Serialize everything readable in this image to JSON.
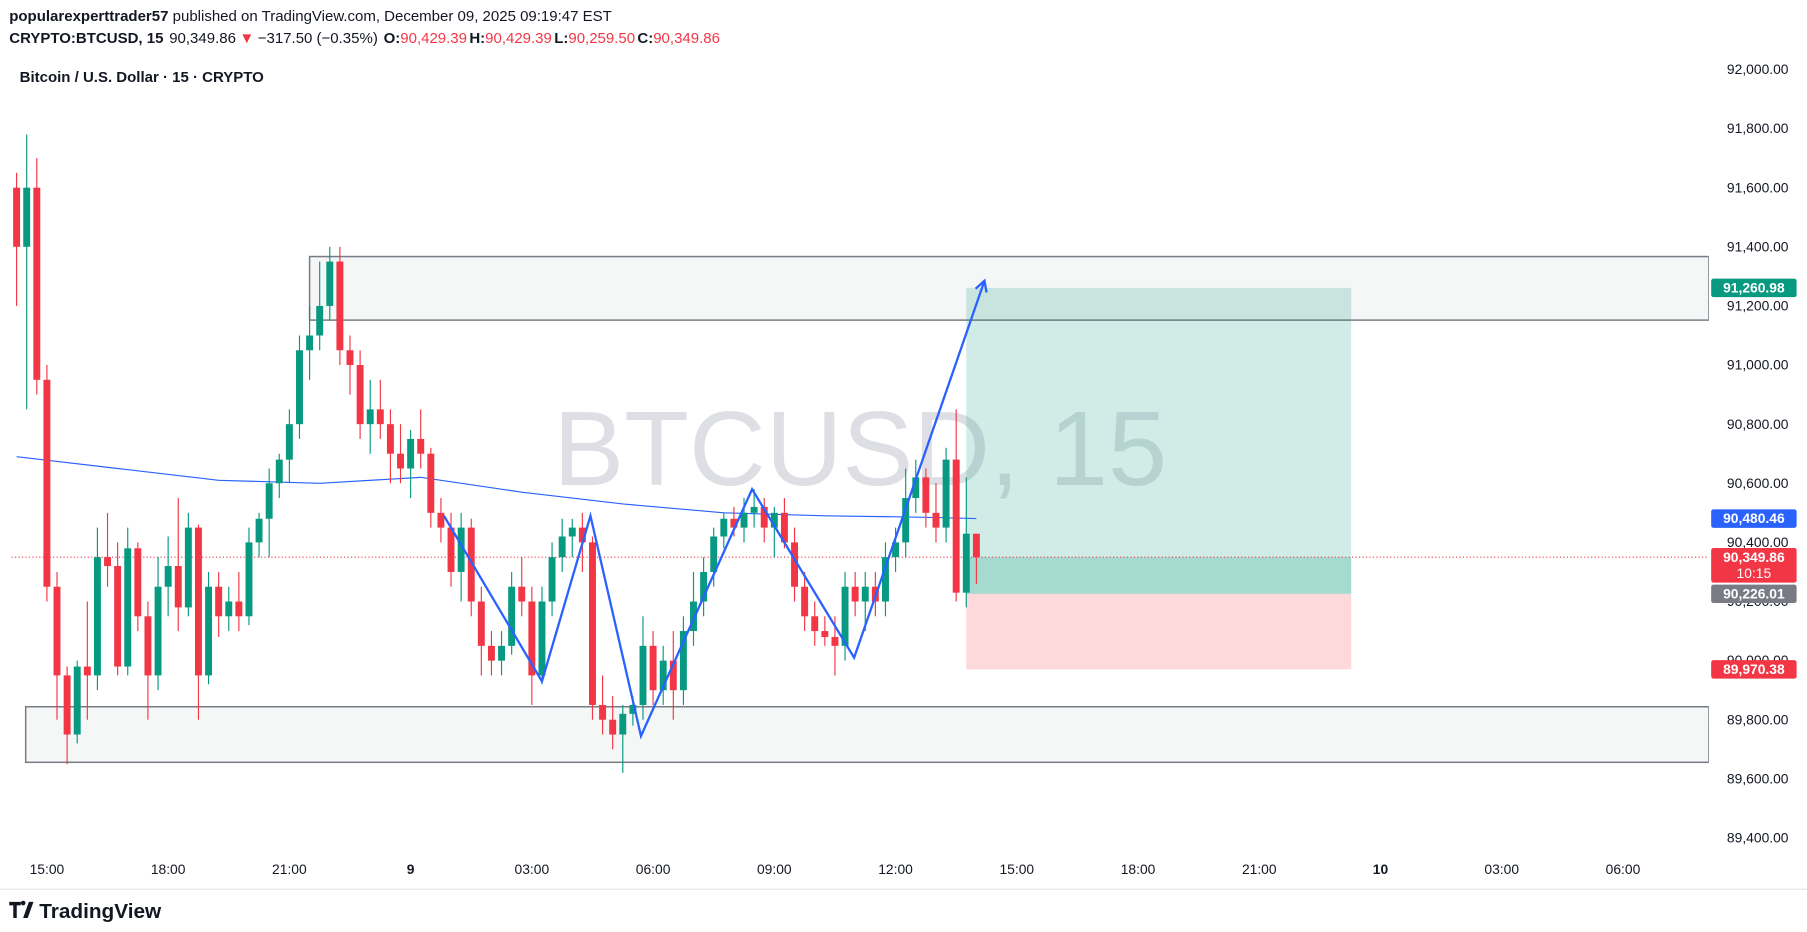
{
  "header": {
    "author": "popularexperttrader57",
    "published": " published on TradingView.com, December 09, 2025 09:19:47 EST",
    "symbol": "CRYPTO:BTCUSD, 15",
    "last": "90,349.86",
    "arrow": "▼",
    "change": "−317.50 (−0.35%)",
    "o_label": "O:",
    "o": "90,429.39",
    "h_label": "H:",
    "h": "90,429.39",
    "l_label": "L:",
    "l": "90,259.50",
    "c_label": "C:",
    "c": "90,349.86"
  },
  "chart_data": {
    "type": "candlestick",
    "title": "Bitcoin / U.S. Dollar · 15 · CRYPTO",
    "watermark": "BTCUSD, 15",
    "up_color": "#089981",
    "down_color": "#f23645",
    "x": [
      0,
      1,
      2,
      3,
      4,
      5,
      6,
      7,
      8,
      9,
      10,
      11,
      12,
      13,
      14,
      15,
      16,
      17,
      18,
      19,
      20,
      21,
      22,
      23,
      24,
      25,
      26,
      27,
      28,
      29,
      30,
      31,
      32,
      33,
      34,
      35,
      36,
      37,
      38,
      39,
      40,
      41,
      42,
      43,
      44,
      45,
      46,
      47,
      48,
      49,
      50,
      51,
      52,
      53,
      54,
      55,
      56,
      57,
      58,
      59,
      60,
      61,
      62,
      63,
      64,
      65,
      66,
      67,
      68,
      69,
      70,
      71,
      72,
      73,
      74,
      75,
      76,
      77,
      78,
      79,
      80,
      81,
      82,
      83,
      84,
      85,
      86,
      87,
      88,
      89,
      90,
      91,
      92,
      93,
      94,
      95
    ],
    "ohlc": [
      [
        91600,
        91650,
        91200,
        91400
      ],
      [
        91400,
        91780,
        90850,
        91600
      ],
      [
        91600,
        91700,
        90900,
        90950
      ],
      [
        90950,
        91000,
        90200,
        90250
      ],
      [
        90250,
        90300,
        89800,
        89950
      ],
      [
        89950,
        89980,
        89650,
        89750
      ],
      [
        89750,
        90000,
        89720,
        89980
      ],
      [
        89980,
        90200,
        89800,
        89950
      ],
      [
        89950,
        90450,
        89900,
        90350
      ],
      [
        90350,
        90500,
        90250,
        90320
      ],
      [
        90320,
        90400,
        89950,
        89980
      ],
      [
        89980,
        90450,
        89950,
        90380
      ],
      [
        90380,
        90400,
        90100,
        90150
      ],
      [
        90150,
        90200,
        89800,
        89950
      ],
      [
        89950,
        90350,
        89900,
        90250
      ],
      [
        90250,
        90420,
        90150,
        90320
      ],
      [
        90320,
        90550,
        90100,
        90180
      ],
      [
        90180,
        90500,
        90150,
        90450
      ],
      [
        90450,
        90460,
        89800,
        89950
      ],
      [
        89950,
        90300,
        89920,
        90250
      ],
      [
        90250,
        90300,
        90080,
        90150
      ],
      [
        90150,
        90250,
        90100,
        90200
      ],
      [
        90200,
        90300,
        90100,
        90150
      ],
      [
        90150,
        90450,
        90120,
        90400
      ],
      [
        90400,
        90500,
        90350,
        90480
      ],
      [
        90480,
        90650,
        90350,
        90600
      ],
      [
        90600,
        90700,
        90550,
        90680
      ],
      [
        90680,
        90850,
        90600,
        90800
      ],
      [
        90800,
        91100,
        90750,
        91050
      ],
      [
        91050,
        91200,
        90950,
        91100
      ],
      [
        91100,
        91350,
        91050,
        91200
      ],
      [
        91200,
        91400,
        91150,
        91350
      ],
      [
        91350,
        91400,
        91000,
        91050
      ],
      [
        91050,
        91100,
        90900,
        91000
      ],
      [
        91000,
        91050,
        90750,
        90800
      ],
      [
        90800,
        90950,
        90700,
        90850
      ],
      [
        90850,
        90950,
        90750,
        90800
      ],
      [
        90800,
        90850,
        90600,
        90700
      ],
      [
        90700,
        90800,
        90600,
        90650
      ],
      [
        90650,
        90780,
        90550,
        90750
      ],
      [
        90750,
        90850,
        90650,
        90700
      ],
      [
        90700,
        90720,
        90450,
        90500
      ],
      [
        90500,
        90550,
        90400,
        90450
      ],
      [
        90450,
        90500,
        90250,
        90300
      ],
      [
        90300,
        90500,
        90200,
        90450
      ],
      [
        90450,
        90480,
        90150,
        90200
      ],
      [
        90200,
        90250,
        89950,
        90050
      ],
      [
        90050,
        90100,
        89950,
        90000
      ],
      [
        90000,
        90100,
        89950,
        90050
      ],
      [
        90050,
        90300,
        90020,
        90250
      ],
      [
        90250,
        90350,
        90150,
        90200
      ],
      [
        90200,
        90250,
        89850,
        89950
      ],
      [
        89950,
        90250,
        89920,
        90200
      ],
      [
        90200,
        90400,
        90150,
        90350
      ],
      [
        90350,
        90480,
        90300,
        90420
      ],
      [
        90420,
        90480,
        90350,
        90450
      ],
      [
        90450,
        90500,
        90300,
        90400
      ],
      [
        90400,
        90420,
        89800,
        89850
      ],
      [
        89850,
        89950,
        89750,
        89800
      ],
      [
        89800,
        89880,
        89700,
        89750
      ],
      [
        89750,
        89850,
        89620,
        89820
      ],
      [
        89820,
        89880,
        89780,
        89850
      ],
      [
        89850,
        90150,
        89800,
        90050
      ],
      [
        90050,
        90100,
        89850,
        89900
      ],
      [
        89900,
        90050,
        89850,
        90000
      ],
      [
        90000,
        90100,
        89800,
        89900
      ],
      [
        89900,
        90150,
        89850,
        90100
      ],
      [
        90100,
        90300,
        90050,
        90200
      ],
      [
        90200,
        90350,
        90150,
        90300
      ],
      [
        90300,
        90450,
        90250,
        90420
      ],
      [
        90420,
        90500,
        90380,
        90480
      ],
      [
        90480,
        90520,
        90420,
        90450
      ],
      [
        90450,
        90550,
        90400,
        90500
      ],
      [
        90500,
        90580,
        90450,
        90520
      ],
      [
        90520,
        90550,
        90400,
        90450
      ],
      [
        90450,
        90520,
        90350,
        90500
      ],
      [
        90500,
        90550,
        90380,
        90400
      ],
      [
        90400,
        90450,
        90200,
        90250
      ],
      [
        90250,
        90300,
        90100,
        90150
      ],
      [
        90150,
        90200,
        90050,
        90100
      ],
      [
        90100,
        90150,
        90050,
        90080
      ],
      [
        90080,
        90150,
        89950,
        90050
      ],
      [
        90050,
        90300,
        90000,
        90250
      ],
      [
        90250,
        90300,
        90150,
        90200
      ],
      [
        90200,
        90300,
        90100,
        90250
      ],
      [
        90250,
        90300,
        90150,
        90200
      ],
      [
        90200,
        90400,
        90150,
        90350
      ],
      [
        90350,
        90450,
        90300,
        90400
      ],
      [
        90400,
        90650,
        90350,
        90550
      ],
      [
        90550,
        90680,
        90500,
        90620
      ],
      [
        90620,
        90650,
        90450,
        90500
      ],
      [
        90500,
        90600,
        90400,
        90450
      ],
      [
        90450,
        90720,
        90400,
        90680
      ],
      [
        90680,
        90850,
        90200,
        90230
      ],
      [
        90230,
        90620,
        90180,
        90429.39
      ],
      [
        90429.39,
        90429.39,
        90259.5,
        90349.86
      ]
    ],
    "last_label": "90,349.86",
    "countdown": "10:15",
    "xlim": [
      -0.5,
      167.5
    ],
    "xticks": [
      {
        "value": 3,
        "label": "15:00"
      },
      {
        "value": 15,
        "label": "18:00"
      },
      {
        "value": 27,
        "label": "21:00"
      },
      {
        "value": 39,
        "label": "9"
      },
      {
        "value": 51,
        "label": "03:00"
      },
      {
        "value": 63,
        "label": "06:00"
      },
      {
        "value": 75,
        "label": "09:00"
      },
      {
        "value": 87,
        "label": "12:00"
      },
      {
        "value": 99,
        "label": "15:00"
      },
      {
        "value": 111,
        "label": "18:00"
      },
      {
        "value": 123,
        "label": "21:00"
      },
      {
        "value": 135,
        "label": "10"
      },
      {
        "value": 147,
        "label": "03:00"
      },
      {
        "value": 159,
        "label": "06:00"
      }
    ],
    "ylim": [
      89344,
      92051
    ],
    "yticks": [
      {
        "value": 89400,
        "label": "89,400.00"
      },
      {
        "value": 89600,
        "label": "89,600.00"
      },
      {
        "value": 89800,
        "label": "89,800.00"
      },
      {
        "value": 90000,
        "label": "90,000.00"
      },
      {
        "value": 90200,
        "label": "90,200.00"
      },
      {
        "value": 90400,
        "label": "90,400.00"
      },
      {
        "value": 90600,
        "label": "90,600.00"
      },
      {
        "value": 90800,
        "label": "90,800.00"
      },
      {
        "value": 91000,
        "label": "91,000.00"
      },
      {
        "value": 91200,
        "label": "91,200.00"
      },
      {
        "value": 91400,
        "label": "91,400.00"
      },
      {
        "value": 91600,
        "label": "91,600.00"
      },
      {
        "value": 91800,
        "label": "91,800.00"
      },
      {
        "value": 92000,
        "label": "92,000.00"
      }
    ],
    "ma": {
      "color": "#2962ff",
      "x": [
        0,
        10,
        20,
        30,
        40,
        50,
        60,
        70,
        80,
        90,
        95
      ],
      "values": [
        90690,
        90650,
        90610,
        90600,
        90620,
        90570,
        90530,
        90500,
        90490,
        90485,
        90480.46
      ],
      "last_label": "90,480.46"
    },
    "zigzag": {
      "color": "#2962ff",
      "x": [
        42.3,
        52,
        56.8,
        61.8,
        72.8,
        82.9,
        95.8
      ],
      "values": [
        90490,
        89930,
        90490,
        89745,
        90580,
        90010,
        91285
      ]
    },
    "zones": [
      {
        "x0": 29,
        "top": 91367,
        "bottom": 91152
      },
      {
        "x0": 0.9,
        "top": 89844,
        "bottom": 89656
      }
    ],
    "position": {
      "x0": 94,
      "x1": 132.1,
      "entry": 90226.01,
      "target": 91260.98,
      "stop": 89970.38,
      "entry_label": "90,226.01",
      "target_label": "91,260.98",
      "stop_label": "89,970.38"
    }
  },
  "footer": {
    "brand": "TradingView"
  }
}
